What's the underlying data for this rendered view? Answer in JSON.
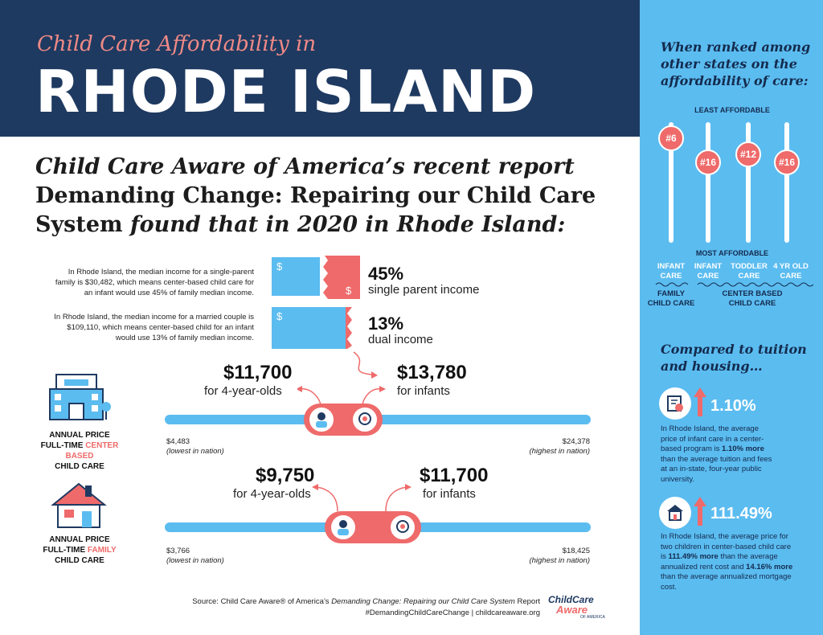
{
  "header": {
    "subtitle": "Child Care Affordability in",
    "title": "RHODE ISLAND"
  },
  "intro": {
    "line1": "Child Care Aware of America’s recent report",
    "line2": "Demanding Change: Repairing our Child Care",
    "line3_a": "System",
    "line3_b": " found that in 2020 in Rhode Island:"
  },
  "income": {
    "single": {
      "text": "In Rhode Island, the median income for a single-parent family is $30,482, which means center-based child care for an infant would use 45% of family median income.",
      "pct": "45%",
      "label": "single parent income"
    },
    "dual": {
      "text": "In Rhode Island, the median income for a married couple is $109,110, which means center-based child for an infant would use 13% of family median income.",
      "pct": "13%",
      "label": "dual income"
    },
    "dollar": "$"
  },
  "center": {
    "cat_line1": "ANNUAL PRICE",
    "cat_line2a": "FULL-TIME ",
    "cat_line2b": "CENTER BASED",
    "cat_line3": "CHILD CARE",
    "price_4yr": "$11,700",
    "label_4yr": "for 4-year-olds",
    "price_inf": "$13,780",
    "label_inf": "for infants",
    "low": "$4,483",
    "low_note": "(lowest in nation)",
    "high": "$24,378",
    "high_note": "(highest in nation)"
  },
  "family": {
    "cat_line1": "ANNUAL PRICE",
    "cat_line2a": "FULL-TIME ",
    "cat_line2b": "FAMILY",
    "cat_line3": "CHILD CARE",
    "price_4yr": "$9,750",
    "label_4yr": "for 4-year-olds",
    "price_inf": "$11,700",
    "label_inf": "for infants",
    "low": "$3,766",
    "low_note": "(lowest in nation)",
    "high": "$18,425",
    "high_note": "(highest in nation)"
  },
  "source": {
    "line1_a": "Source: Child Care Aware® of America’s ",
    "line1_b": "Demanding Change: Repairing our Child Care System",
    "line1_c": " Report",
    "line2": "#DemandingChildCareChange | childcareaware.org",
    "logo_a": "Child",
    "logo_b": "Care",
    "logo_c": "Aware",
    "logo_d": "OF AMERICA"
  },
  "ranking": {
    "heading": "When ranked among other states on the affordability of care:",
    "least": "LEAST AFFORDABLE",
    "most": "MOST AFFORDABLE",
    "ranks": [
      {
        "rank": "#6",
        "label1": "INFANT",
        "label2": "CARE"
      },
      {
        "rank": "#16",
        "label1": "INFANT",
        "label2": "CARE"
      },
      {
        "rank": "#12",
        "label1": "TODDLER",
        "label2": "CARE"
      },
      {
        "rank": "#16",
        "label1": "4 YR OLD",
        "label2": "CARE"
      }
    ],
    "group1_a": "FAMILY",
    "group1_b": "CHILD CARE",
    "group2_a": "CENTER BASED",
    "group2_b": "CHILD CARE"
  },
  "compare": {
    "heading": "Compared to tuition and housing…",
    "tuition": {
      "pct": "1.10%",
      "t1": "In Rhode Island, the average price of infant care in a center-based program is ",
      "t2": "1.10% more",
      "t3": " than the average tuition and fees at an in-state, four-year public university."
    },
    "housing": {
      "pct": "111.49%",
      "t1": "In Rhode Island, the average price for two children in center-based child care is ",
      "t2": "111.49% more",
      "t3": " than the average annualized rent cost and ",
      "t4": "14.16% more",
      "t5": " than the average annualized mortgage cost."
    }
  },
  "colors": {
    "navy": "#1f3a61",
    "coral": "#ef6a6a",
    "sky": "#5bbcf0"
  }
}
